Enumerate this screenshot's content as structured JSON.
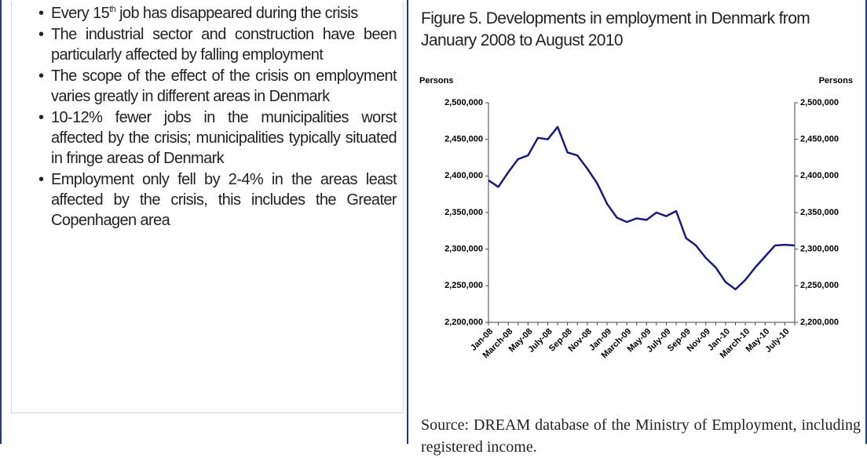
{
  "bullets": [
    {
      "parts": [
        "Every 15",
        "th",
        " job has disappeared during the crisis"
      ]
    },
    {
      "parts": [
        "The industrial sector and construction have been particularly affected by falling employment"
      ]
    },
    {
      "parts": [
        "The scope of the effect of the crisis on employment varies greatly in different areas in Denmark"
      ]
    },
    {
      "parts": [
        "10-12% fewer jobs in the municipalities worst affected by the crisis; municipalities typically situated in fringe areas of Denmark"
      ]
    },
    {
      "parts": [
        "Employment only fell by 2-4% in the areas least affected by the crisis, this includes the Greater Copenhagen area"
      ]
    }
  ],
  "figure": {
    "caption": "Figure 5. Developments in employment in Denmark from January 2008 to August 2010",
    "source": "Source: DREAM database of the Ministry of Employment, including registered income."
  },
  "chart_data": {
    "type": "line",
    "y_label": "Persons",
    "y2_label": "Persons",
    "categories": [
      "Jan-08",
      null,
      "March-08",
      null,
      "May-08",
      null,
      "July-08",
      null,
      "Sep-08",
      null,
      "Nov-08",
      null,
      "Jan-09",
      null,
      "March-09",
      null,
      "May-09",
      null,
      "July-09",
      null,
      "Sep-09",
      null,
      "Nov-09",
      null,
      "Jan-10",
      null,
      "March-10",
      null,
      "May-10",
      null,
      "July-10",
      null
    ],
    "series": [
      {
        "name": "Employment",
        "color": "#1a1a7a",
        "values": [
          2394000,
          2385000,
          2405000,
          2423000,
          2428000,
          2452000,
          2450000,
          2467000,
          2432000,
          2428000,
          2410000,
          2390000,
          2362000,
          2343000,
          2337000,
          2342000,
          2340000,
          2350000,
          2345000,
          2352000,
          2315000,
          2305000,
          2288000,
          2275000,
          2255000,
          2245000,
          2258000,
          2275000,
          2290000,
          2305000,
          2306000,
          2305000
        ]
      }
    ],
    "ylim": [
      2200000,
      2500000
    ],
    "yticks": [
      {
        "value": 2200000,
        "label": "2,200,000"
      },
      {
        "value": 2250000,
        "label": "2,250,000"
      },
      {
        "value": 2300000,
        "label": "2,300,000"
      },
      {
        "value": 2350000,
        "label": "2,350,000"
      },
      {
        "value": 2400000,
        "label": "2,400,000"
      },
      {
        "value": 2450000,
        "label": "2,450,000"
      },
      {
        "value": 2500000,
        "label": "2,500,000"
      }
    ],
    "y2lim": [
      2200000,
      2500000
    ],
    "y2ticks": [
      {
        "value": 2200000,
        "label": "2,200,000"
      },
      {
        "value": 2250000,
        "label": "2,250,000"
      },
      {
        "value": 2300000,
        "label": "2,300,000"
      },
      {
        "value": 2350000,
        "label": "2,350,000"
      },
      {
        "value": 2400000,
        "label": "2,400,000"
      },
      {
        "value": 2450000,
        "label": "2,450,000"
      },
      {
        "value": 2500000,
        "label": "2,500,000"
      }
    ],
    "grid": false
  }
}
